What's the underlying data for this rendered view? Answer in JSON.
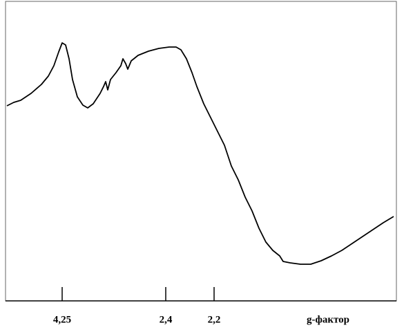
{
  "chart_data": {
    "type": "line",
    "x": [
      0,
      10,
      20,
      35,
      50,
      60,
      68,
      75,
      80,
      85,
      90,
      95,
      102,
      110,
      117,
      125,
      135,
      140,
      143,
      146,
      150,
      158,
      165,
      168,
      172,
      175,
      180,
      190,
      205,
      220,
      235,
      245,
      252,
      260,
      268,
      275,
      285,
      295,
      305,
      315,
      320,
      325,
      335,
      345,
      355,
      365,
      375,
      385,
      395,
      400,
      410,
      425,
      440,
      455,
      470,
      485,
      500,
      515,
      530,
      545,
      560
    ],
    "series": [
      {
        "color": "#000000",
        "values": [
          282,
          287,
          290,
          300,
          313,
          325,
          340,
          360,
          373,
          370,
          350,
          320,
          295,
          283,
          279,
          285,
          300,
          310,
          317,
          305,
          320,
          330,
          340,
          350,
          343,
          335,
          347,
          355,
          361,
          365,
          367,
          367,
          363,
          350,
          330,
          310,
          285,
          265,
          245,
          225,
          210,
          195,
          175,
          150,
          130,
          105,
          85,
          73,
          65,
          57,
          55,
          53,
          53,
          58,
          65,
          73,
          83,
          93,
          103,
          113,
          122
        ]
      }
    ],
    "xlim": [
      0,
      562
    ],
    "ylim": [
      0,
      435
    ],
    "xticks": [
      {
        "value": 80,
        "label": "4,25"
      },
      {
        "value": 230,
        "label": "2,4"
      },
      {
        "value": 300,
        "label": "2,2"
      }
    ],
    "x_label": "g-фактор"
  }
}
